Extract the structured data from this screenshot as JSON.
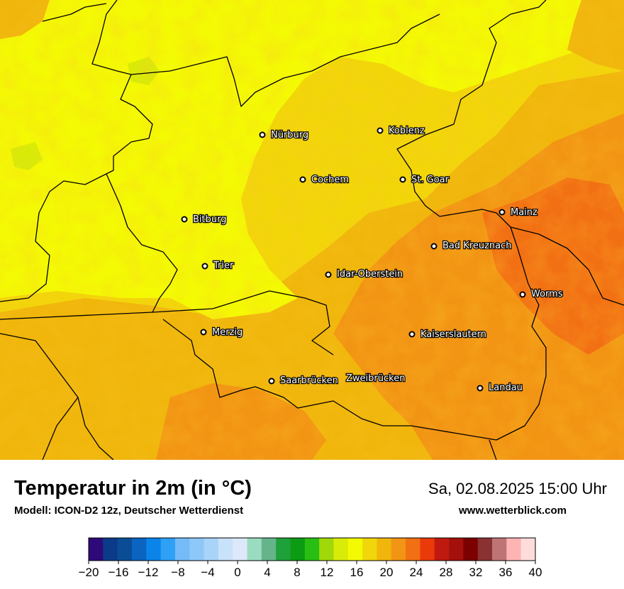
{
  "title": "Temperatur in 2m (in °C)",
  "subtitle": "Modell: ICON-D2 12z, Deutscher Wetterdienst",
  "datetime": "Sa, 02.08.2025 15:00 Uhr",
  "website": "www.wetterblick.com",
  "cities": [
    {
      "name": "Nürburg"
    },
    {
      "name": "Koblenz"
    },
    {
      "name": "Cochem"
    },
    {
      "name": "St. Goar"
    },
    {
      "name": "Bitburg"
    },
    {
      "name": "Mainz"
    },
    {
      "name": "Bad Kreuznach"
    },
    {
      "name": "Trier"
    },
    {
      "name": "Idar-Oberstein"
    },
    {
      "name": "Worms"
    },
    {
      "name": "Merzig"
    },
    {
      "name": "Kaiserslautern"
    },
    {
      "name": "Saarbrücken"
    },
    {
      "name": "Zweibrücken"
    },
    {
      "name": "Landau"
    }
  ],
  "legend": {
    "colors": [
      "#2d0a7a",
      "#0b3b88",
      "#0a4d96",
      "#0a64c0",
      "#0a84e8",
      "#2ea0f6",
      "#74bbf8",
      "#8ec8f8",
      "#a9d4f8",
      "#c8e2fa",
      "#dde9fa",
      "#9adcc0",
      "#66b48a",
      "#1ea03a",
      "#0c9c14",
      "#28be14",
      "#a0d80a",
      "#d8ec08",
      "#f4fa04",
      "#f0d60a",
      "#f0b60c",
      "#f29414",
      "#f27014",
      "#ea3a0a",
      "#c01a10",
      "#a4100c",
      "#7c0000",
      "#8a3232",
      "#be7474",
      "#ffb4b4",
      "#ffdcdc"
    ],
    "ticks": [
      "−20",
      "−16",
      "−12",
      "−8",
      "−4",
      "0",
      "4",
      "8",
      "12",
      "16",
      "20",
      "24",
      "28",
      "32",
      "36",
      "40"
    ]
  }
}
